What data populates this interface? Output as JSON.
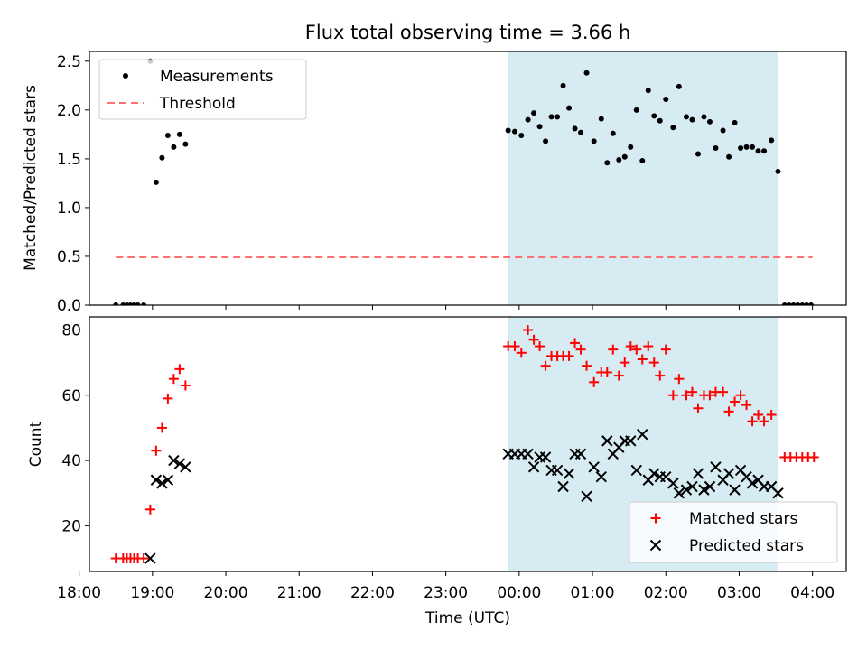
{
  "title": "Flux total observing time = 3.66 h",
  "colors": {
    "measurement": "#000000",
    "threshold": "#ff7070",
    "matched": "#ff0000",
    "predicted": "#000000",
    "span_fill": "#add8e6"
  },
  "chart_data": [
    {
      "type": "scatter",
      "ylabel": "Matched/Predicted stars",
      "ylim": [
        0,
        2.6
      ],
      "yticks": [
        "0.0",
        "0.5",
        "1.0",
        "1.5",
        "2.0",
        "2.5"
      ],
      "xlim": [
        18.14,
        28.46
      ],
      "grid": false,
      "legend": {
        "placement": "top-left",
        "entries": [
          {
            "label": "Measurements",
            "marker": "dot"
          },
          {
            "label": "Threshold",
            "marker": "dashed-line"
          }
        ]
      },
      "highlight_span": [
        23.85,
        27.53
      ],
      "threshold": {
        "value": 0.49,
        "x_range": [
          18.5,
          28.0
        ]
      },
      "series": [
        {
          "name": "Measurements",
          "points": [
            [
              18.5,
              0.0
            ],
            [
              18.6,
              0.0
            ],
            [
              18.65,
              0.0
            ],
            [
              18.7,
              0.0
            ],
            [
              18.75,
              0.0
            ],
            [
              18.8,
              0.0
            ],
            [
              18.88,
              0.0
            ],
            [
              18.97,
              2.5
            ],
            [
              19.05,
              1.26
            ],
            [
              19.13,
              1.51
            ],
            [
              19.21,
              1.74
            ],
            [
              19.29,
              1.62
            ],
            [
              19.37,
              1.75
            ],
            [
              19.45,
              1.65
            ],
            [
              23.85,
              1.79
            ],
            [
              23.94,
              1.78
            ],
            [
              24.03,
              1.74
            ],
            [
              24.12,
              1.9
            ],
            [
              24.2,
              1.97
            ],
            [
              24.28,
              1.83
            ],
            [
              24.36,
              1.68
            ],
            [
              24.44,
              1.93
            ],
            [
              24.52,
              1.93
            ],
            [
              24.6,
              2.25
            ],
            [
              24.68,
              2.02
            ],
            [
              24.76,
              1.81
            ],
            [
              24.84,
              1.77
            ],
            [
              24.92,
              2.38
            ],
            [
              25.02,
              1.68
            ],
            [
              25.12,
              1.91
            ],
            [
              25.2,
              1.46
            ],
            [
              25.28,
              1.76
            ],
            [
              25.36,
              1.49
            ],
            [
              25.44,
              1.52
            ],
            [
              25.52,
              1.62
            ],
            [
              25.6,
              2.0
            ],
            [
              25.68,
              1.48
            ],
            [
              25.76,
              2.2
            ],
            [
              25.84,
              1.94
            ],
            [
              25.92,
              1.89
            ],
            [
              26.0,
              2.11
            ],
            [
              26.1,
              1.82
            ],
            [
              26.18,
              2.24
            ],
            [
              26.28,
              1.93
            ],
            [
              26.36,
              1.9
            ],
            [
              26.44,
              1.55
            ],
            [
              26.52,
              1.93
            ],
            [
              26.6,
              1.88
            ],
            [
              26.68,
              1.61
            ],
            [
              26.78,
              1.79
            ],
            [
              26.86,
              1.52
            ],
            [
              26.94,
              1.87
            ],
            [
              27.02,
              1.61
            ],
            [
              27.1,
              1.62
            ],
            [
              27.18,
              1.62
            ],
            [
              27.26,
              1.58
            ],
            [
              27.34,
              1.58
            ],
            [
              27.44,
              1.69
            ],
            [
              27.53,
              1.37
            ],
            [
              27.62,
              0.0
            ],
            [
              27.68,
              0.0
            ],
            [
              27.74,
              0.0
            ],
            [
              27.8,
              0.0
            ],
            [
              27.86,
              0.0
            ],
            [
              27.92,
              0.0
            ],
            [
              27.98,
              0.0
            ]
          ]
        }
      ]
    },
    {
      "type": "scatter",
      "ylabel": "Count",
      "xlabel": "Time (UTC)",
      "ylim": [
        6,
        84
      ],
      "yticks": [
        "20",
        "40",
        "60",
        "80"
      ],
      "xlim": [
        18.14,
        28.46
      ],
      "xticks": [
        {
          "v": 18,
          "label": "18:00"
        },
        {
          "v": 19,
          "label": "19:00"
        },
        {
          "v": 20,
          "label": "20:00"
        },
        {
          "v": 21,
          "label": "21:00"
        },
        {
          "v": 22,
          "label": "22:00"
        },
        {
          "v": 23,
          "label": "23:00"
        },
        {
          "v": 24,
          "label": "00:00"
        },
        {
          "v": 25,
          "label": "01:00"
        },
        {
          "v": 26,
          "label": "02:00"
        },
        {
          "v": 27,
          "label": "03:00"
        },
        {
          "v": 28,
          "label": "04:00"
        }
      ],
      "grid": false,
      "legend": {
        "placement": "bottom-right",
        "entries": [
          {
            "label": "Matched stars",
            "marker": "plus"
          },
          {
            "label": "Predicted stars",
            "marker": "x"
          }
        ]
      },
      "highlight_span": [
        23.85,
        27.53
      ],
      "series": [
        {
          "name": "Matched stars",
          "points": [
            [
              18.5,
              10
            ],
            [
              18.6,
              10
            ],
            [
              18.65,
              10
            ],
            [
              18.7,
              10
            ],
            [
              18.75,
              10
            ],
            [
              18.8,
              10
            ],
            [
              18.88,
              10
            ],
            [
              18.97,
              25
            ],
            [
              19.05,
              43
            ],
            [
              19.13,
              50
            ],
            [
              19.21,
              59
            ],
            [
              19.29,
              65
            ],
            [
              19.37,
              68
            ],
            [
              19.45,
              63
            ],
            [
              23.85,
              75
            ],
            [
              23.94,
              75
            ],
            [
              24.03,
              73
            ],
            [
              24.12,
              80
            ],
            [
              24.2,
              77
            ],
            [
              24.28,
              75
            ],
            [
              24.36,
              69
            ],
            [
              24.44,
              72
            ],
            [
              24.52,
              72
            ],
            [
              24.6,
              72
            ],
            [
              24.68,
              72
            ],
            [
              24.76,
              76
            ],
            [
              24.84,
              74
            ],
            [
              24.92,
              69
            ],
            [
              25.02,
              64
            ],
            [
              25.12,
              67
            ],
            [
              25.2,
              67
            ],
            [
              25.28,
              74
            ],
            [
              25.36,
              66
            ],
            [
              25.44,
              70
            ],
            [
              25.52,
              75
            ],
            [
              25.6,
              74
            ],
            [
              25.68,
              71
            ],
            [
              25.76,
              75
            ],
            [
              25.84,
              70
            ],
            [
              25.92,
              66
            ],
            [
              26.0,
              74
            ],
            [
              26.1,
              60
            ],
            [
              26.18,
              65
            ],
            [
              26.28,
              60
            ],
            [
              26.36,
              61
            ],
            [
              26.44,
              56
            ],
            [
              26.52,
              60
            ],
            [
              26.6,
              60
            ],
            [
              26.68,
              61
            ],
            [
              26.78,
              61
            ],
            [
              26.86,
              55
            ],
            [
              26.94,
              58
            ],
            [
              27.02,
              60
            ],
            [
              27.1,
              57
            ],
            [
              27.18,
              52
            ],
            [
              27.26,
              54
            ],
            [
              27.34,
              52
            ],
            [
              27.44,
              54
            ],
            [
              27.62,
              41
            ],
            [
              27.7,
              41
            ],
            [
              27.78,
              41
            ],
            [
              27.86,
              41
            ],
            [
              27.94,
              41
            ],
            [
              28.02,
              41
            ]
          ]
        },
        {
          "name": "Predicted stars",
          "points": [
            [
              18.97,
              10
            ],
            [
              19.05,
              34
            ],
            [
              19.13,
              33
            ],
            [
              19.21,
              34
            ],
            [
              19.29,
              40
            ],
            [
              19.37,
              39
            ],
            [
              19.45,
              38
            ],
            [
              23.85,
              42
            ],
            [
              23.94,
              42
            ],
            [
              24.03,
              42
            ],
            [
              24.12,
              42
            ],
            [
              24.2,
              38
            ],
            [
              24.28,
              41
            ],
            [
              24.36,
              41
            ],
            [
              24.44,
              37
            ],
            [
              24.52,
              37
            ],
            [
              24.6,
              32
            ],
            [
              24.68,
              36
            ],
            [
              24.76,
              42
            ],
            [
              24.84,
              42
            ],
            [
              24.92,
              29
            ],
            [
              25.02,
              38
            ],
            [
              25.12,
              35
            ],
            [
              25.2,
              46
            ],
            [
              25.28,
              42
            ],
            [
              25.36,
              44
            ],
            [
              25.44,
              46
            ],
            [
              25.52,
              46
            ],
            [
              25.6,
              37
            ],
            [
              25.68,
              48
            ],
            [
              25.76,
              34
            ],
            [
              25.84,
              36
            ],
            [
              25.92,
              35
            ],
            [
              26.0,
              35
            ],
            [
              26.1,
              33
            ],
            [
              26.18,
              30
            ],
            [
              26.28,
              31
            ],
            [
              26.36,
              32
            ],
            [
              26.44,
              36
            ],
            [
              26.52,
              31
            ],
            [
              26.6,
              32
            ],
            [
              26.68,
              38
            ],
            [
              26.78,
              34
            ],
            [
              26.86,
              36
            ],
            [
              26.94,
              31
            ],
            [
              27.02,
              37
            ],
            [
              27.1,
              35
            ],
            [
              27.18,
              33
            ],
            [
              27.26,
              34
            ],
            [
              27.34,
              32
            ],
            [
              27.44,
              32
            ],
            [
              27.53,
              30
            ]
          ]
        }
      ]
    }
  ]
}
